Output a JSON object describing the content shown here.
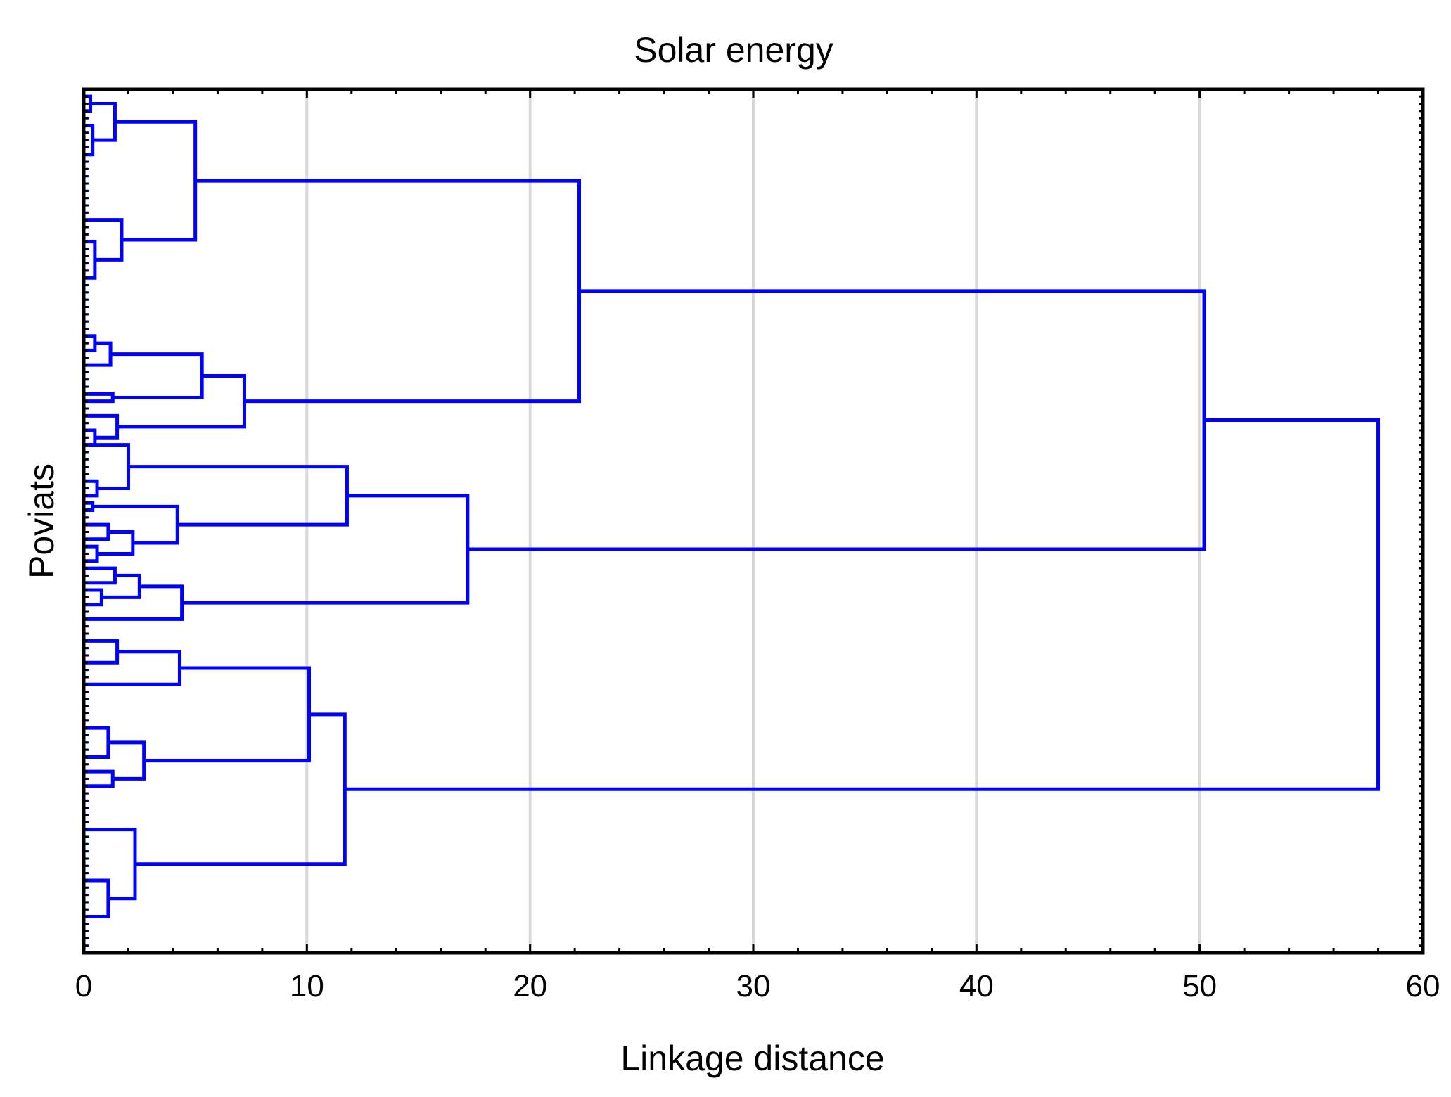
{
  "chart_data": {
    "type": "dendrogram",
    "title": "Solar energy",
    "xlabel": "Linkage distance",
    "ylabel": "Poviats",
    "xlim": [
      0,
      60
    ],
    "x_ticks": [
      0,
      10,
      20,
      30,
      40,
      50,
      60
    ],
    "grid": true,
    "line_color": "#0000ff",
    "leaf_count": 118,
    "links": [
      {
        "id": "a1",
        "d": 0.3,
        "leaf_from": 1,
        "leaf_to": 3
      },
      {
        "id": "a2",
        "d": 0.4,
        "leaf_from": 5,
        "leaf_to": 9
      },
      {
        "id": "A",
        "d": 1.4,
        "children": [
          "a1",
          "a2"
        ]
      },
      {
        "id": "b2",
        "d": 0.5,
        "leaf_from": 21,
        "leaf_to": 26
      },
      {
        "id": "B",
        "d": 1.7,
        "leaf_from": 18,
        "children": [
          "b2"
        ]
      },
      {
        "id": "AB",
        "d": 5.0,
        "children": [
          "A",
          "B"
        ]
      },
      {
        "id": "c1",
        "d": 0.5,
        "leaf_from": 34,
        "leaf_to": 36
      },
      {
        "id": "C",
        "d": 1.2,
        "children": [
          "c1"
        ],
        "leaf_to": 38
      },
      {
        "id": "D",
        "d": 1.3,
        "leaf_from": 42,
        "leaf_to": 43
      },
      {
        "id": "CD",
        "d": 5.3,
        "children": [
          "C",
          "D"
        ]
      },
      {
        "id": "e2",
        "d": 0.5,
        "leaf_from": 47,
        "leaf_to": 49
      },
      {
        "id": "E",
        "d": 1.5,
        "leaf_from": 45,
        "children": [
          "e2"
        ]
      },
      {
        "id": "CDE",
        "d": 7.2,
        "children": [
          "CD",
          "E"
        ]
      },
      {
        "id": "U",
        "d": 22.2,
        "children": [
          "AB",
          "CDE"
        ]
      },
      {
        "id": "f2",
        "d": 0.6,
        "leaf_from": 54,
        "leaf_to": 56
      },
      {
        "id": "F",
        "d": 2.0,
        "leaf_from": 49,
        "children": [
          "f2"
        ]
      },
      {
        "id": "g1",
        "d": 0.4,
        "leaf_from": 57,
        "leaf_to": 58
      },
      {
        "id": "h1",
        "d": 1.1,
        "leaf_from": 60,
        "leaf_to": 62
      },
      {
        "id": "h2",
        "d": 0.6,
        "leaf_from": 63,
        "leaf_to": 65
      },
      {
        "id": "H",
        "d": 2.2,
        "children": [
          "h1",
          "h2"
        ]
      },
      {
        "id": "G",
        "d": 4.2,
        "children": [
          "g1",
          "H"
        ]
      },
      {
        "id": "FG",
        "d": 11.8,
        "children": [
          "F",
          "G"
        ]
      },
      {
        "id": "i1",
        "d": 1.4,
        "leaf_from": 66,
        "leaf_to": 68
      },
      {
        "id": "i2",
        "d": 0.8,
        "leaf_from": 69,
        "leaf_to": 71
      },
      {
        "id": "I",
        "d": 2.5,
        "children": [
          "i1",
          "i2"
        ]
      },
      {
        "id": "J",
        "d": 4.4,
        "children": [
          "I"
        ],
        "leaf_to": 73
      },
      {
        "id": "FGJ",
        "d": 17.2,
        "children": [
          "FG",
          "J"
        ]
      },
      {
        "id": "V",
        "d": 50.2,
        "children": [
          "U",
          "FGJ"
        ]
      },
      {
        "id": "k1",
        "d": 1.5,
        "leaf_from": 76,
        "leaf_to": 79
      },
      {
        "id": "K",
        "d": 4.3,
        "children": [
          "k1"
        ],
        "leaf_to": 82
      },
      {
        "id": "l1",
        "d": 1.1,
        "leaf_from": 88,
        "leaf_to": 92
      },
      {
        "id": "l2",
        "d": 1.3,
        "leaf_from": 94,
        "leaf_to": 96
      },
      {
        "id": "L",
        "d": 2.7,
        "children": [
          "l1",
          "l2"
        ]
      },
      {
        "id": "KL",
        "d": 10.1,
        "children": [
          "K",
          "L"
        ]
      },
      {
        "id": "m2",
        "d": 1.1,
        "leaf_from": 109,
        "leaf_to": 114
      },
      {
        "id": "M",
        "d": 2.3,
        "leaf_from": 102,
        "children": [
          "m2"
        ]
      },
      {
        "id": "W",
        "d": 11.7,
        "children": [
          "KL",
          "M"
        ]
      },
      {
        "id": "ROOT",
        "d": 58.0,
        "children": [
          "V",
          "W"
        ]
      }
    ]
  }
}
